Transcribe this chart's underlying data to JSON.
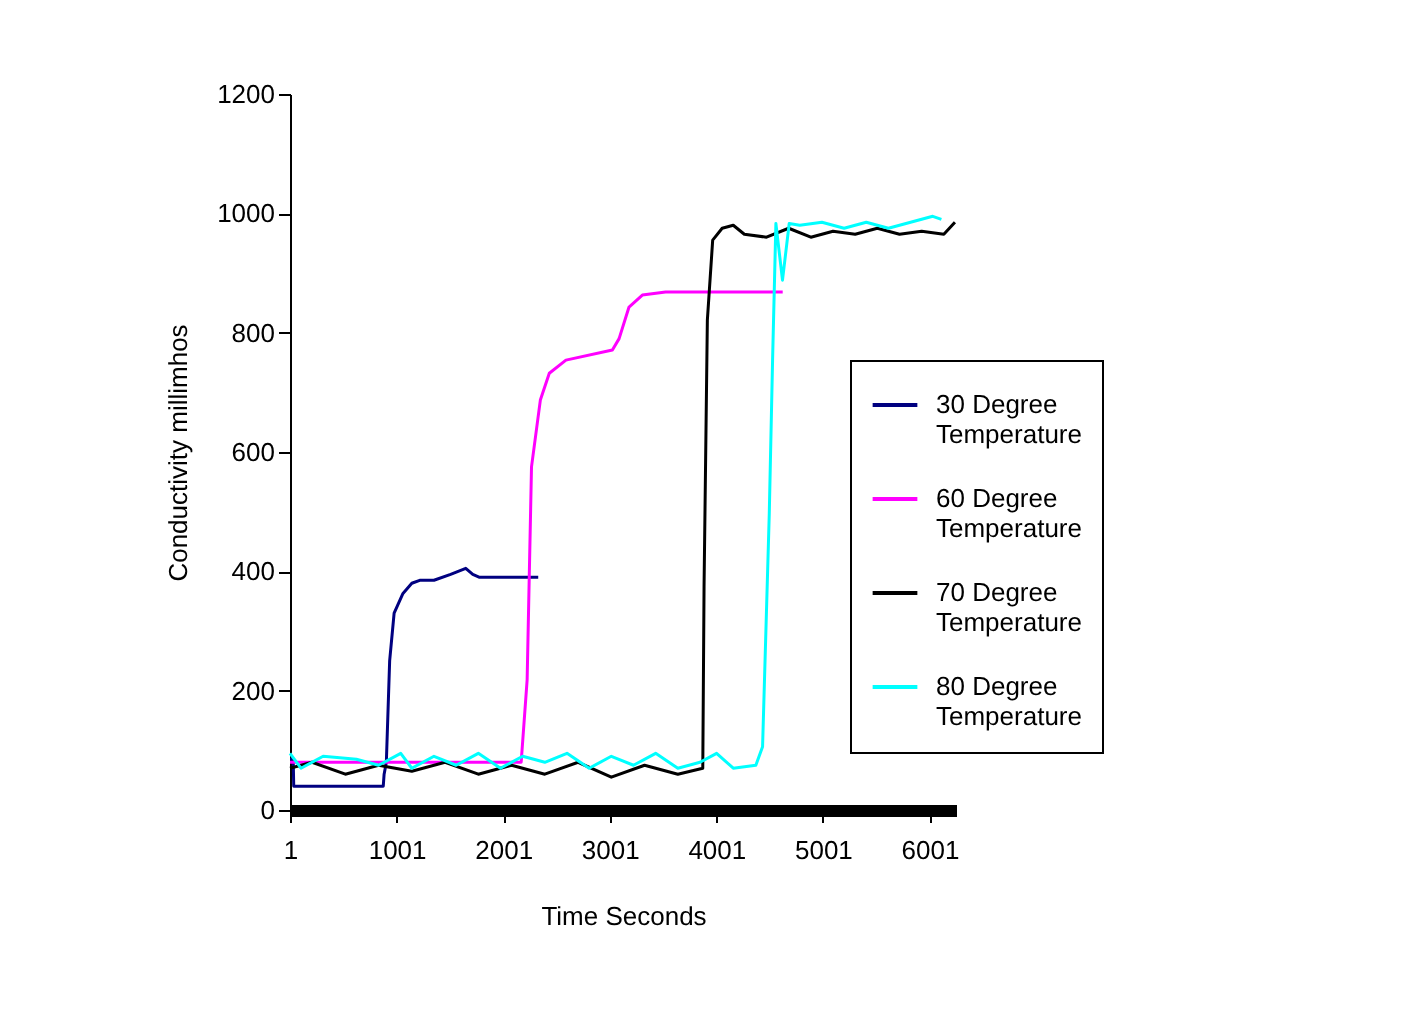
{
  "chart_data": {
    "type": "line",
    "xlabel": "Time Seconds",
    "ylabel": "Conductivity millimhos",
    "xlim": [
      1,
      6250
    ],
    "xticks": [
      1,
      1001,
      2001,
      3001,
      4001,
      5001,
      6001
    ],
    "ylim": [
      0,
      1200
    ],
    "yticks": [
      0,
      200,
      400,
      600,
      800,
      1000,
      1200
    ],
    "grid": false,
    "legend": "right",
    "marker": "none",
    "line_style": "solid",
    "series": [
      {
        "name": "30 Degree Temperature",
        "color": "#000080",
        "x": [
          1,
          31,
          36,
          876,
          884,
          905,
          936,
          978,
          1061,
          1144,
          1218,
          1352,
          1508,
          1650,
          1716,
          1780,
          2330
        ],
        "values": [
          85,
          85,
          40,
          40,
          60,
          80,
          250,
          330,
          363,
          380,
          385,
          385,
          395,
          405,
          395,
          390,
          390
        ]
      },
      {
        "name": "60 Degree Temperature",
        "color": "#ff00ff",
        "x": [
          1,
          2170,
          2226,
          2267,
          2350,
          2434,
          2590,
          3026,
          3089,
          3182,
          3307,
          3525,
          4624
        ],
        "values": [
          80,
          80,
          218,
          575,
          687,
          732,
          754,
          771,
          790,
          843,
          863,
          868,
          868
        ]
      },
      {
        "name": "70 Degree Temperature",
        "color": "#000000",
        "x": [
          1,
          208,
          520,
          832,
          1144,
          1456,
          1768,
          2080,
          2392,
          2704,
          3016,
          3328,
          3640,
          3874,
          3886,
          3917,
          3967,
          4056,
          4160,
          4264,
          4472,
          4680,
          4888,
          5096,
          5304,
          5512,
          5720,
          5928,
          6136,
          6240
        ],
        "values": [
          70,
          80,
          60,
          75,
          65,
          80,
          60,
          75,
          60,
          80,
          55,
          75,
          60,
          70,
          374,
          821,
          955,
          975,
          980,
          965,
          960,
          975,
          960,
          970,
          965,
          975,
          965,
          970,
          965,
          985
        ]
      },
      {
        "name": "80 Degree Temperature",
        "color": "#00ffff",
        "x": [
          1,
          104,
          312,
          624,
          832,
          1040,
          1144,
          1352,
          1560,
          1768,
          1976,
          2184,
          2392,
          2600,
          2808,
          3016,
          3224,
          3432,
          3640,
          3848,
          4004,
          4160,
          4372,
          4435,
          4498,
          4529,
          4560,
          4622,
          4685,
          4784,
          4992,
          5200,
          5408,
          5616,
          5824,
          6032,
          6113
        ],
        "values": [
          95,
          70,
          90,
          85,
          75,
          95,
          70,
          90,
          75,
          95,
          70,
          90,
          80,
          95,
          70,
          90,
          75,
          95,
          70,
          80,
          95,
          70,
          75,
          106,
          497,
          754,
          983,
          888,
          983,
          980,
          985,
          975,
          985,
          975,
          985,
          995,
          990
        ]
      }
    ]
  }
}
